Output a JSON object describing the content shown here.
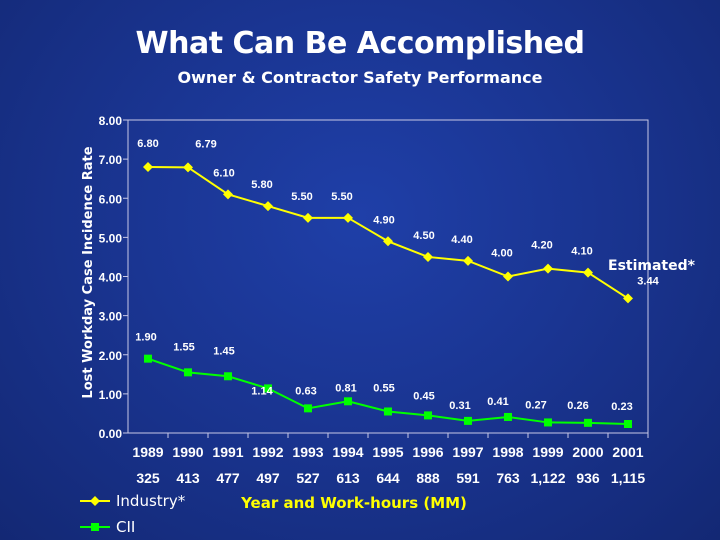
{
  "chart_data": {
    "type": "line",
    "title": "What Can Be Accomplished",
    "subtitle": "Owner & Contractor Safety Performance",
    "ylabel": "Lost Workday Case Incidence Rate",
    "xlabel": "Year and Work-hours (MM)",
    "ylim": [
      0,
      8
    ],
    "yticks": [
      "0.00",
      "1.00",
      "2.00",
      "3.00",
      "4.00",
      "5.00",
      "6.00",
      "7.00",
      "8.00"
    ],
    "categories": [
      "1989",
      "1990",
      "1991",
      "1992",
      "1993",
      "1994",
      "1995",
      "1996",
      "1997",
      "1998",
      "1999",
      "2000",
      "2001"
    ],
    "workhours": [
      "325",
      "413",
      "477",
      "497",
      "527",
      "613",
      "644",
      "888",
      "591",
      "763",
      "1,122",
      "936",
      "1,115"
    ],
    "grid": false,
    "legend_position": "bottom-left",
    "series": [
      {
        "name": "Industry*",
        "color": "#ffff00",
        "values": [
          6.8,
          6.79,
          6.1,
          5.8,
          5.5,
          5.5,
          4.9,
          4.5,
          4.4,
          4.0,
          4.2,
          4.1,
          3.44
        ],
        "labels": [
          "6.80",
          "6.79",
          "6.10",
          "5.80",
          "5.50",
          "5.50",
          "4.90",
          "4.50",
          "4.40",
          "4.00",
          "4.20",
          "4.10",
          "3.44"
        ]
      },
      {
        "name": "CII",
        "color": "#00ff00",
        "values": [
          1.9,
          1.55,
          1.45,
          1.14,
          0.63,
          0.81,
          0.55,
          0.45,
          0.31,
          0.41,
          0.27,
          0.26,
          0.23
        ],
        "labels": [
          "1.90",
          "1.55",
          "1.45",
          "1.14",
          "0.63",
          "0.81",
          "0.55",
          "0.45",
          "0.31",
          "0.41",
          "0.27",
          "0.26",
          "0.23"
        ]
      }
    ],
    "annotations": [
      "Estimated*"
    ]
  }
}
